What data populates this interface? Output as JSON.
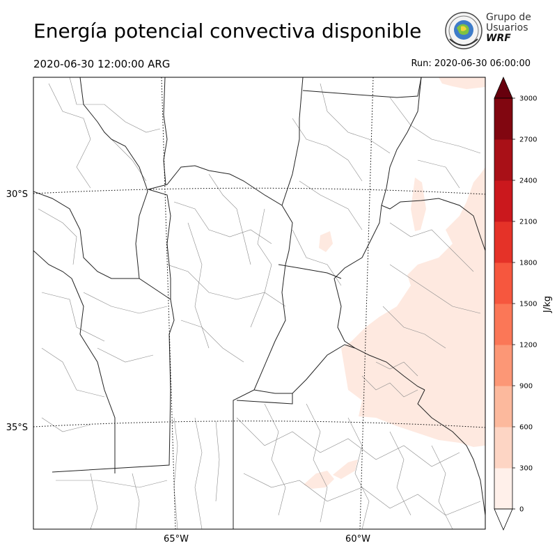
{
  "header": {
    "title": "Energía potencial convectiva disponible",
    "valid_time": "2020-06-30 12:00:00 ARG",
    "run_time": "Run: 2020-06-30 06:00:00"
  },
  "logo": {
    "line1": "Grupo de",
    "line2": "Usuarios",
    "line3": "WRF"
  },
  "map": {
    "lat_labels": [
      "30°S",
      "35°S"
    ],
    "lon_labels": [
      "65°W",
      "60°W"
    ],
    "field_colors": {
      "land": "#ffffff",
      "cape_low": "#fee9e0",
      "borders": "#222222",
      "departments": "#8a8a8a"
    }
  },
  "colorbar": {
    "label": "J/kg",
    "ticks": [
      "0",
      "300",
      "600",
      "900",
      "1200",
      "1500",
      "1800",
      "2100",
      "2400",
      "2700",
      "3000"
    ],
    "colors": [
      "#fff0ea",
      "#fdd5c4",
      "#fcb99d",
      "#fc9776",
      "#fb7757",
      "#f6573e",
      "#e53228",
      "#cb181d",
      "#a91017",
      "#810610",
      "#67000d"
    ]
  }
}
